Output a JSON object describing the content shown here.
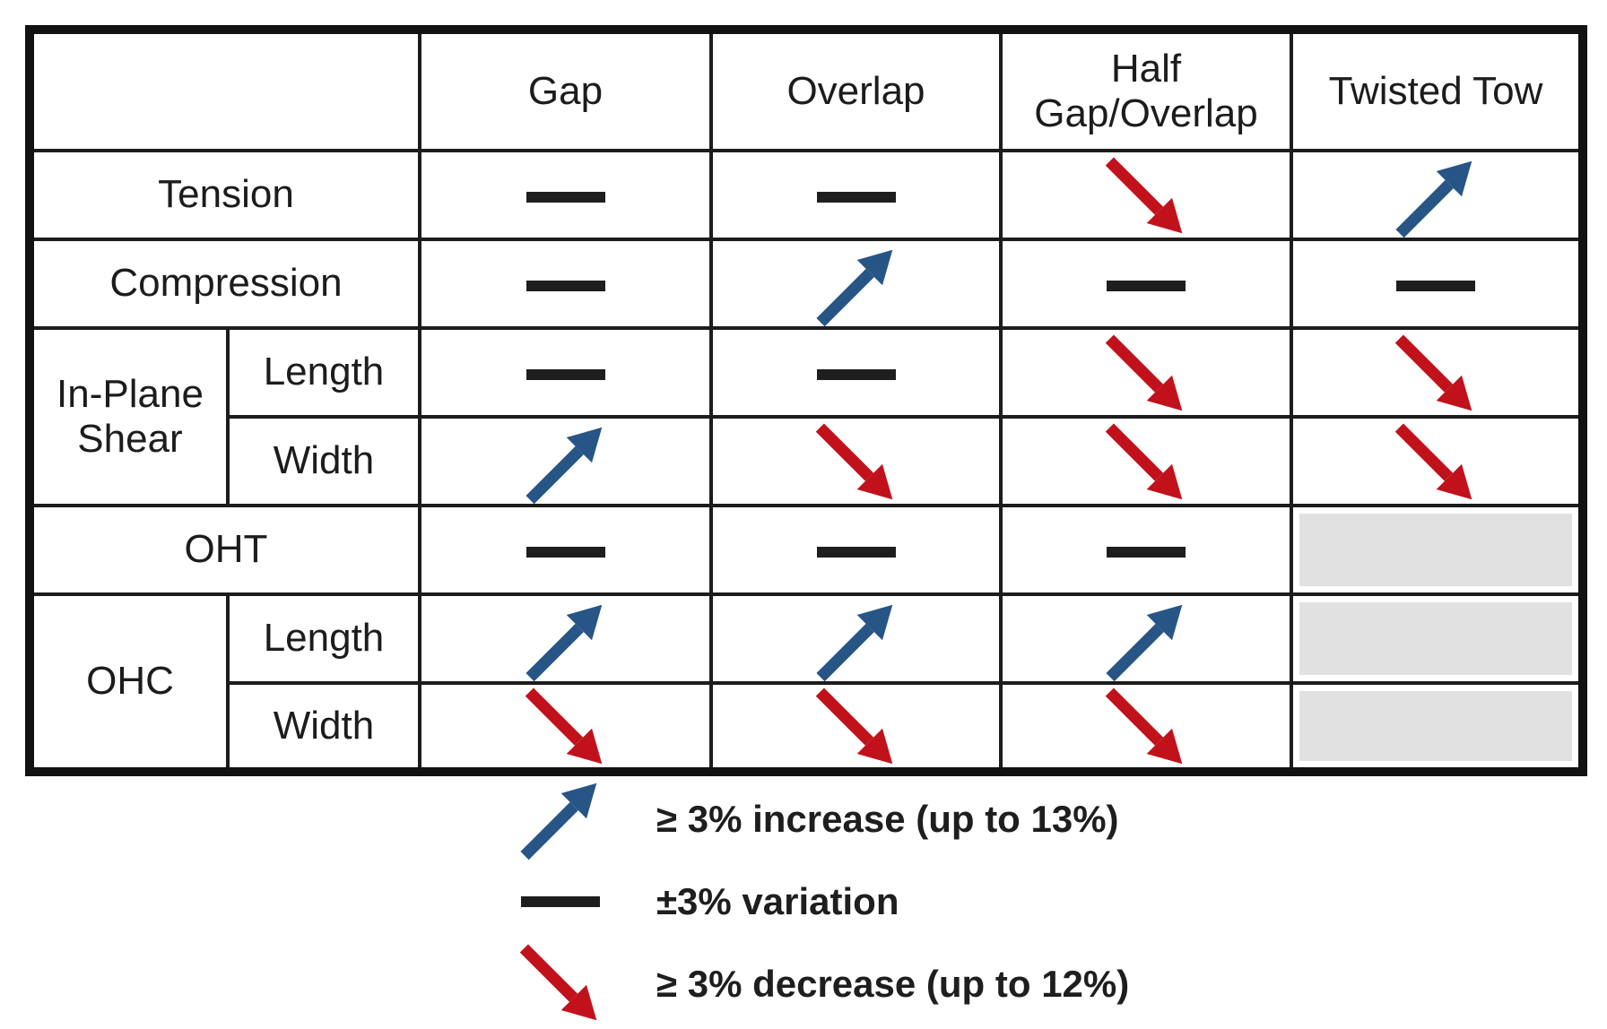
{
  "table": {
    "columns": [
      "Gap",
      "Overlap",
      "Half Gap/Overlap",
      "Twisted Tow"
    ],
    "rows": [
      {
        "group": "Tension",
        "sub": "",
        "cells": [
          "variation",
          "variation",
          "decrease",
          "increase"
        ]
      },
      {
        "group": "Compression",
        "sub": "",
        "cells": [
          "variation",
          "increase",
          "variation",
          "variation"
        ]
      },
      {
        "group": "In-Plane Shear",
        "sub": "Length",
        "cells": [
          "variation",
          "variation",
          "decrease",
          "decrease"
        ]
      },
      {
        "group": "In-Plane Shear",
        "sub": "Width",
        "cells": [
          "increase",
          "decrease",
          "decrease",
          "decrease"
        ]
      },
      {
        "group": "OHT",
        "sub": "",
        "cells": [
          "variation",
          "variation",
          "variation",
          "na"
        ]
      },
      {
        "group": "OHC",
        "sub": "Length",
        "cells": [
          "increase",
          "increase",
          "increase",
          "na"
        ]
      },
      {
        "group": "OHC",
        "sub": "Width",
        "cells": [
          "decrease",
          "decrease",
          "decrease",
          "na"
        ]
      }
    ]
  },
  "legend": [
    {
      "symbol": "increase",
      "label": "≥ 3% increase (up to 13%)"
    },
    {
      "symbol": "variation",
      "label": "±3% variation"
    },
    {
      "symbol": "decrease",
      "label": "≥ 3% decrease (up to 12%)"
    }
  ],
  "colors": {
    "increase": "#275586",
    "decrease": "#c1121c",
    "dash": "#1e1e1e",
    "na_fill": "#e1e1e1"
  }
}
